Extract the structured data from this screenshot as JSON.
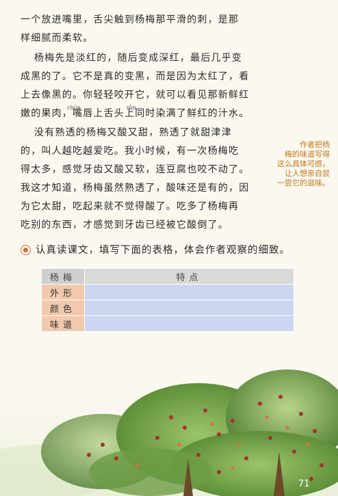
{
  "paragraph1": [
    "一个放进嘴里，舌尖触到杨梅那平滑的刺，是那",
    "样细腻而柔软。"
  ],
  "paragraph2": [
    "杨梅先是淡红的，随后变成深红，最后几乎变",
    "成黑的了。它不是真的变黑，而是因为太红了，看",
    "上去像黑的。你轻轻咬开它，就可以看见那新鲜红",
    "嫩的果肉，嘴唇上舌头上同时染满了鲜红的汁水。"
  ],
  "ruby": {
    "chun": "chún",
    "ran": "rǎn"
  },
  "paragraph3": [
    "没有熟透的杨梅又酸又甜，熟透了就甜津津",
    "的，叫人越吃越爱吃。我小时候，有一次杨梅吃",
    "得太多，感觉牙齿又酸又软，连豆腐也咬不动了。",
    "我这才知道，杨梅虽然熟透了，酸味还是有的，因",
    "为它太甜，吃起来就不觉得酸了。吃多了杨梅再",
    "吃别的东西，才感觉到牙齿已经被它酸倒了。"
  ],
  "side_note": [
    "作者把杨",
    "梅的味道写得",
    "这么具体可感，",
    "让人想亲自尝",
    "一尝它的滋味。"
  ],
  "task": "认真读课文，填写下面的表格，体会作者观察的细致。",
  "table": {
    "header_col1": "杨梅",
    "header_col2": "特点",
    "rows": [
      "外形",
      "颜色",
      "味道"
    ]
  },
  "page_number": "71",
  "colors": {
    "note": "#c0791b",
    "task_icon": "#d96a3a",
    "table_label_bg": "#f2c9ad",
    "table_value_bg": "#ccd6f0"
  }
}
